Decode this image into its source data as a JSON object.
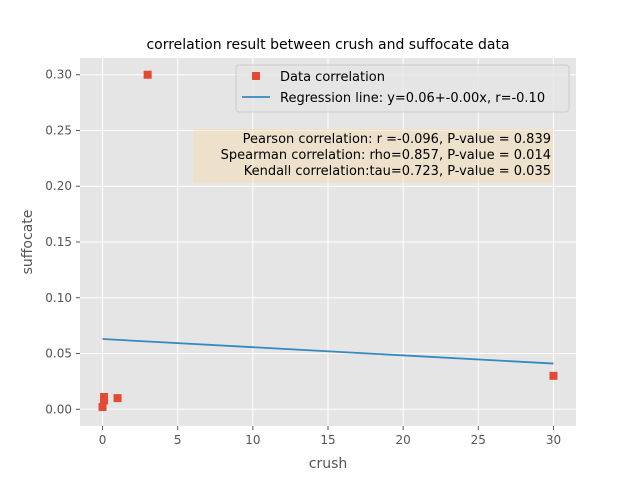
{
  "chart_data": {
    "type": "scatter",
    "title": "correlation result between crush and suffocate data",
    "xlabel": "crush",
    "ylabel": "suffocate",
    "xlim": [
      -1.5,
      31.5
    ],
    "ylim": [
      -0.015,
      0.315
    ],
    "xticks": [
      0,
      5,
      10,
      15,
      20,
      25,
      30
    ],
    "yticks": [
      0.0,
      0.05,
      0.1,
      0.15,
      0.2,
      0.25,
      0.3
    ],
    "xtick_labels": [
      "0",
      "5",
      "10",
      "15",
      "20",
      "25",
      "30"
    ],
    "ytick_labels": [
      "0.00",
      "0.05",
      "0.10",
      "0.15",
      "0.20",
      "0.25",
      "0.30"
    ],
    "grid": true,
    "legend_position": "top-right",
    "series": [
      {
        "name": "Data correlation",
        "kind": "markers",
        "marker": "square",
        "color": "#E24A33",
        "x": [
          0,
          0.1,
          0.1,
          1,
          3,
          30
        ],
        "y": [
          0.002,
          0.008,
          0.011,
          0.01,
          0.3,
          0.03
        ]
      },
      {
        "name": "Regression line: y=0.06+-0.00x, r=-0.10",
        "kind": "line",
        "color": "#348ABD",
        "x": [
          0,
          30
        ],
        "y": [
          0.063,
          0.041
        ]
      }
    ],
    "annotation": {
      "lines": [
        "Pearson correlation: r =-0.096, P-value = 0.839",
        "Spearman correlation: rho=0.857, P-value = 0.014",
        "Kendall correlation:tau=0.723, P-value = 0.035"
      ],
      "background": "#F5DEB3"
    },
    "plot_background": "#E5E5E5",
    "grid_color": "#FFFFFF",
    "text_color": "#555555"
  }
}
